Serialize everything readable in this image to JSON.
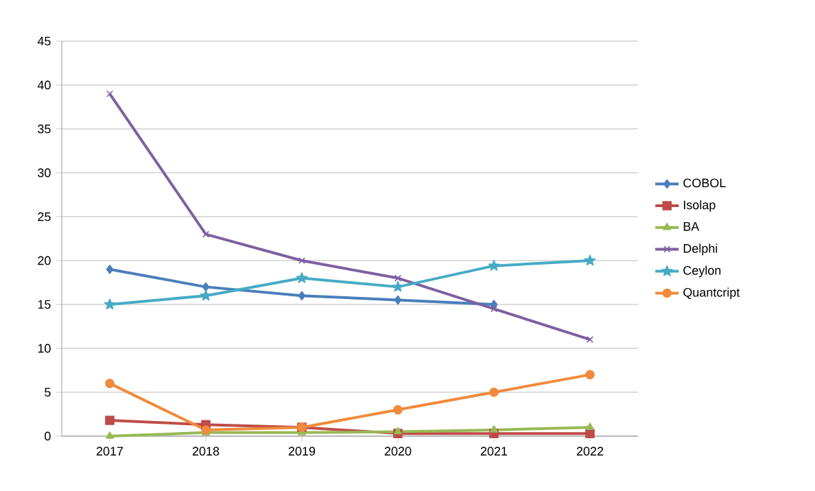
{
  "chart_data": {
    "type": "line",
    "categories": [
      "2017",
      "2018",
      "2019",
      "2020",
      "2021",
      "2022"
    ],
    "series": [
      {
        "name": "COBOL",
        "color": "#4a7ebb",
        "marker": "diamond",
        "values": [
          19,
          17,
          16,
          15.5,
          15,
          null
        ]
      },
      {
        "name": "Isolap",
        "color": "#be4b48",
        "marker": "square",
        "values": [
          1.8,
          1.3,
          1,
          0.3,
          0.3,
          0.3
        ]
      },
      {
        "name": "BA",
        "color": "#98b954",
        "marker": "triangle",
        "values": [
          0,
          0.4,
          0.4,
          0.5,
          0.7,
          1
        ]
      },
      {
        "name": "Delphi",
        "color": "#7d60a0",
        "marker": "cross",
        "values": [
          39,
          23,
          20,
          18,
          14.5,
          11
        ]
      },
      {
        "name": "Ceylon",
        "color": "#46aac5",
        "marker": "star",
        "values": [
          15,
          16,
          18,
          17,
          19.4,
          20
        ]
      },
      {
        "name": "Quantcript",
        "color": "#f08a3c",
        "marker": "circle",
        "values": [
          6,
          0.7,
          1,
          3,
          5,
          7
        ]
      }
    ],
    "ylim": [
      0,
      45
    ],
    "yticks": [
      0,
      5,
      10,
      15,
      20,
      25,
      30,
      35,
      40,
      45
    ],
    "grid": "y",
    "legend": "right",
    "line_style": "solid"
  }
}
